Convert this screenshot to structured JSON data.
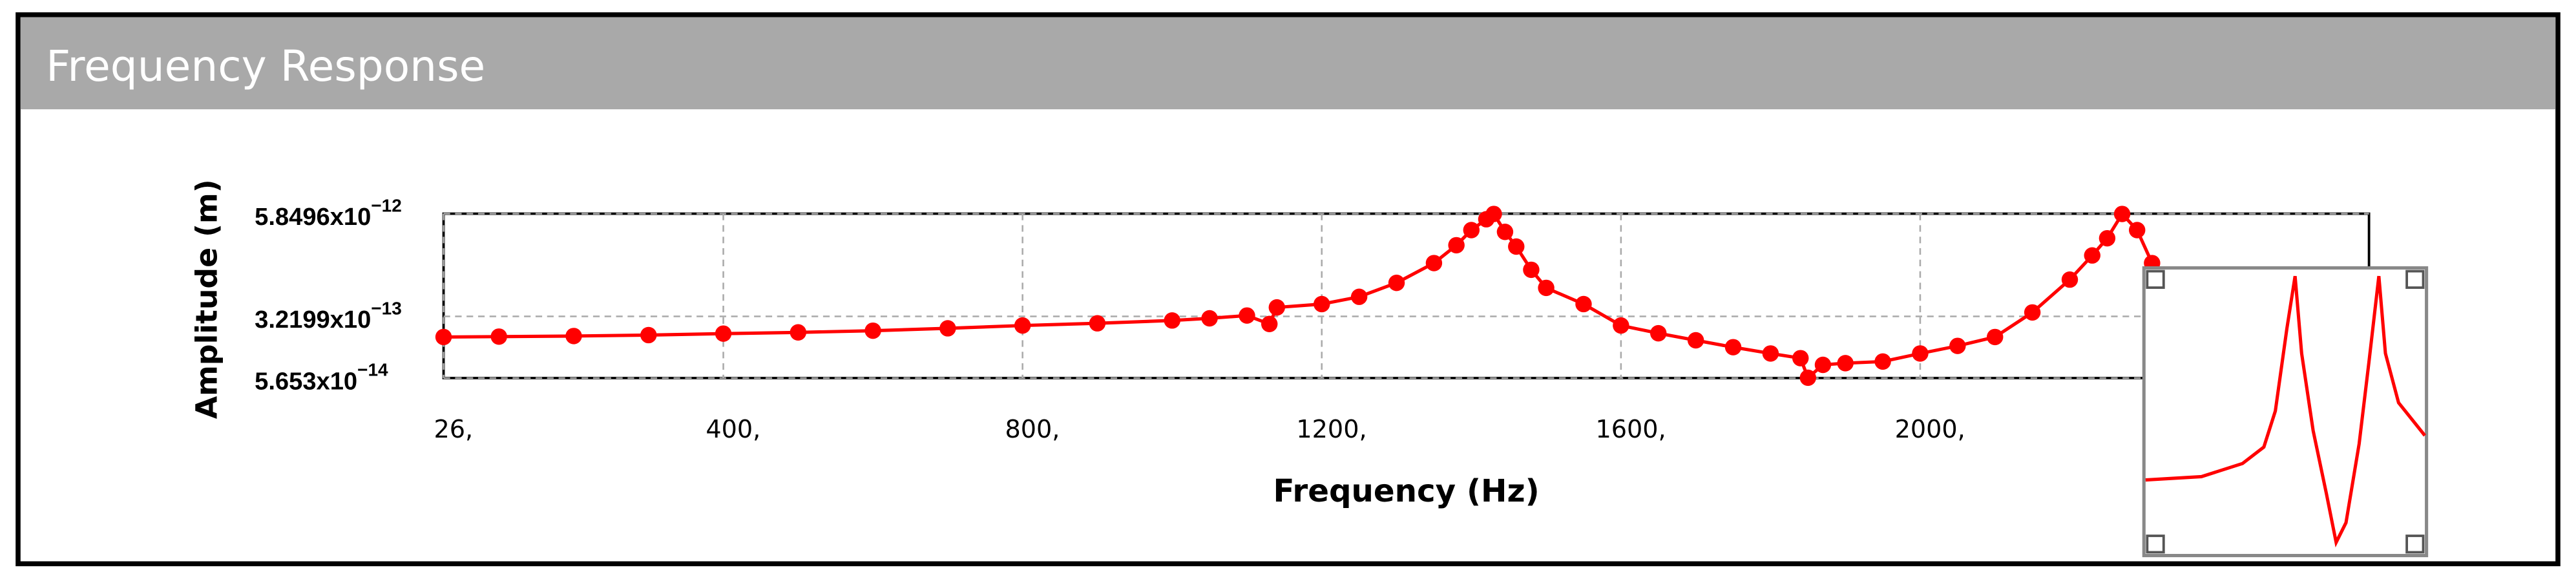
{
  "header": {
    "title": "Frequency Response"
  },
  "chart_data": {
    "type": "line",
    "xlabel": "Frequency (Hz)",
    "ylabel": "Amplitude (m)",
    "log_y": true,
    "grid": true,
    "xlim": [
      26,
      2600
    ],
    "xticks": [
      {
        "value": 26,
        "label": "26,"
      },
      {
        "value": 400,
        "label": "400,"
      },
      {
        "value": 800,
        "label": "800,"
      },
      {
        "value": 1200,
        "label": "1200,"
      },
      {
        "value": 1600,
        "label": "1600,"
      },
      {
        "value": 2000,
        "label": "2000,"
      }
    ],
    "ylim": [
      5.653e-14,
      5.8496e-12
    ],
    "yticks": [
      {
        "value": 5.653e-14,
        "label": "5.653x10",
        "exponent": "−14"
      },
      {
        "value": 3.2199e-13,
        "label": "3.2199x10",
        "exponent": "−13"
      },
      {
        "value": 5.8496e-12,
        "label": "5.8496x10",
        "exponent": "−12"
      }
    ],
    "series": [
      {
        "color": "#ff0000",
        "x": [
          26,
          100,
          200,
          300,
          400,
          500,
          600,
          700,
          800,
          900,
          1000,
          1050,
          1100,
          1130,
          1140,
          1200,
          1250,
          1300,
          1350,
          1380,
          1400,
          1420,
          1430,
          1445,
          1460,
          1480,
          1500,
          1550,
          1600,
          1650,
          1700,
          1750,
          1800,
          1840,
          1850,
          1870,
          1900,
          1950,
          2000,
          2050,
          2100,
          2150,
          2200,
          2230,
          2250,
          2270,
          2290,
          2310
        ],
        "values": [
          1.8e-13,
          1.82e-13,
          1.85e-13,
          1.9e-13,
          1.98e-13,
          2.05e-13,
          2.15e-13,
          2.3e-13,
          2.49e-13,
          2.65e-13,
          2.87e-13,
          3.05e-13,
          3.3e-13,
          2.6e-13,
          4.15e-13,
          4.56e-13,
          5.6e-13,
          8.3e-13,
          1.45e-12,
          2.4e-12,
          3.68e-12,
          5e-12,
          5.8e-12,
          3.5e-12,
          2.31e-12,
          1.2e-12,
          7.2e-13,
          4.56e-13,
          2.49e-13,
          2e-13,
          1.64e-13,
          1.35e-13,
          1.13e-13,
          9.9e-14,
          5.7e-14,
          8.2e-14,
          8.6e-14,
          9e-14,
          1.13e-13,
          1.4e-13,
          1.8e-13,
          3.6e-13,
          9.1e-13,
          1.8e-12,
          2.92e-12,
          5.8e-12,
          3.68e-12,
          1.45e-12
        ]
      }
    ]
  }
}
